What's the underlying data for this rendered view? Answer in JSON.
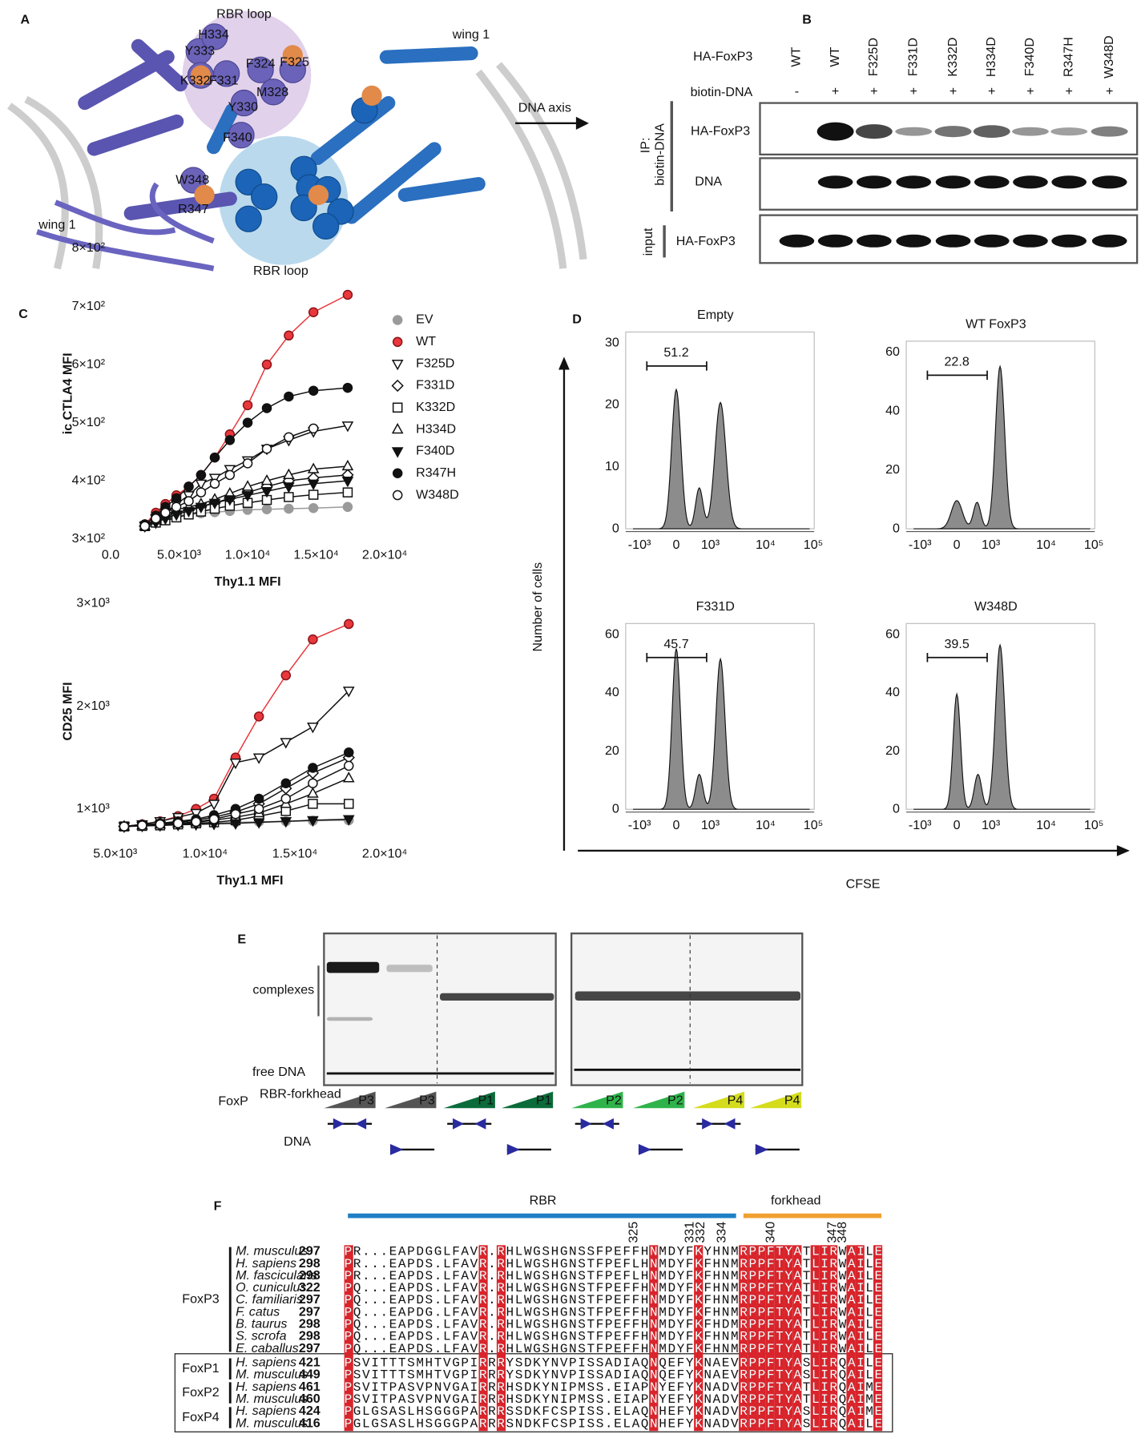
{
  "panel_labels": [
    "A",
    "B",
    "C",
    "D",
    "E",
    "F"
  ],
  "panel_a": {
    "rbr_loop_purple": "RBR loop",
    "residues": [
      "H334",
      "Y333",
      "F324",
      "F325",
      "K332",
      "F331",
      "M328",
      "Y330",
      "F340",
      "W348",
      "R347"
    ],
    "wing_left": "wing 1",
    "wing_right": "wing 1",
    "rbr_loop_blue": "RBR loop",
    "dna_axis": "DNA axis"
  },
  "panel_b": {
    "row_labels": [
      "HA-FoxP3",
      "biotin-DNA"
    ],
    "lanes": [
      "WT",
      "WT",
      "F325D",
      "F331D",
      "K332D",
      "H334D",
      "F340D",
      "R347H",
      "W348D"
    ],
    "biotin": [
      "-",
      "+",
      "+",
      "+",
      "+",
      "+",
      "+",
      "+",
      "+"
    ],
    "ip_label": [
      "IP:",
      "biotin-DNA"
    ],
    "blot_labels": [
      "HA-FoxP3",
      "DNA",
      "HA-FoxP3"
    ],
    "input_label": "input"
  },
  "chart_data": [
    {
      "type": "line",
      "y_label": "ic CTLA4 MFI",
      "x_label": "Thy1.1 MFI",
      "x": [
        2500,
        3300,
        4000,
        4800,
        5700,
        6600,
        7600,
        8700,
        10000,
        11400,
        13000,
        14800,
        17300
      ],
      "xlim": [
        0,
        20000
      ],
      "xticks": [
        {
          "value": 0,
          "label": "0.0"
        },
        {
          "value": 5000,
          "label": "5.0×10³"
        },
        {
          "value": 10000,
          "label": "1.0×10⁴"
        },
        {
          "value": 15000,
          "label": "1.5×10⁴"
        },
        {
          "value": 20000,
          "label": "2.0×10⁴"
        }
      ],
      "ylim": [
        300,
        800
      ],
      "yticks": [
        {
          "value": 300,
          "label": "3×10²"
        },
        {
          "value": 400,
          "label": "4×10²"
        },
        {
          "value": 500,
          "label": "5×10²"
        },
        {
          "value": 600,
          "label": "6×10²"
        },
        {
          "value": 700,
          "label": "7×10²"
        },
        {
          "value": 800,
          "label": "8×10²"
        }
      ],
      "legend": "upper right",
      "series": [
        {
          "name": "EV",
          "color": "#9a9a9a",
          "marker": "circle",
          "filled": true,
          "values": [
            325,
            330,
            335,
            340,
            342,
            344,
            346,
            348,
            350,
            351,
            352,
            353,
            355
          ]
        },
        {
          "name": "WT",
          "color": "#e8383d",
          "marker": "circle",
          "filled": true,
          "values": [
            325,
            345,
            360,
            375,
            390,
            410,
            440,
            480,
            530,
            600,
            650,
            690,
            720
          ]
        },
        {
          "name": "F325D",
          "color": "#111111",
          "marker": "triangle-down",
          "filled": false,
          "values": [
            322,
            335,
            345,
            360,
            375,
            395,
            405,
            420,
            435,
            455,
            470,
            485,
            495
          ]
        },
        {
          "name": "F331D",
          "color": "#111111",
          "marker": "diamond",
          "filled": false,
          "values": [
            322,
            332,
            338,
            345,
            350,
            356,
            362,
            370,
            380,
            390,
            400,
            405,
            410
          ]
        },
        {
          "name": "K332D",
          "color": "#111111",
          "marker": "square",
          "filled": false,
          "values": [
            322,
            328,
            332,
            337,
            342,
            347,
            352,
            357,
            362,
            367,
            372,
            376,
            380
          ]
        },
        {
          "name": "H334D",
          "color": "#111111",
          "marker": "triangle-up",
          "filled": false,
          "values": [
            322,
            332,
            340,
            350,
            355,
            360,
            368,
            378,
            390,
            400,
            410,
            420,
            425
          ]
        },
        {
          "name": "F340D",
          "color": "#111111",
          "marker": "triangle-down",
          "filled": true,
          "values": [
            322,
            328,
            335,
            342,
            348,
            355,
            362,
            368,
            375,
            382,
            390,
            395,
            400
          ]
        },
        {
          "name": "R347H",
          "color": "#111111",
          "marker": "circle",
          "filled": true,
          "values": [
            325,
            340,
            355,
            370,
            390,
            410,
            440,
            470,
            500,
            525,
            545,
            555,
            560
          ]
        },
        {
          "name": "W348D",
          "color": "#111111",
          "marker": "circle",
          "filled": false,
          "values": [
            322,
            335,
            345,
            355,
            365,
            380,
            395,
            410,
            430,
            455,
            475,
            490,
            null
          ]
        }
      ]
    },
    {
      "type": "line",
      "y_label": "CD25 MFI",
      "x_label": "Thy1.1 MFI",
      "x": [
        5500,
        6500,
        7500,
        8500,
        9500,
        10500,
        11700,
        13000,
        14500,
        16000,
        18000
      ],
      "xlim": [
        5000,
        20000
      ],
      "xticks": [
        {
          "value": 5000,
          "label": "5.0×10³"
        },
        {
          "value": 10000,
          "label": "1.0×10⁴"
        },
        {
          "value": 15000,
          "label": "1.5×10⁴"
        },
        {
          "value": 20000,
          "label": "2.0×10⁴"
        }
      ],
      "ylim": [
        800,
        3100
      ],
      "yticks": [
        {
          "value": 1000,
          "label": "1×10³"
        },
        {
          "value": 2000,
          "label": "2×10³"
        },
        {
          "value": 3000,
          "label": "3×10³"
        }
      ],
      "series": [
        {
          "color": "#9a9a9a",
          "marker": "circle",
          "filled": true,
          "values": [
            830,
            840,
            850,
            855,
            860,
            865,
            870,
            875,
            880,
            885,
            890
          ]
        },
        {
          "color": "#e8383d",
          "marker": "circle",
          "filled": true,
          "values": [
            830,
            850,
            880,
            930,
            1000,
            1100,
            1500,
            1900,
            2300,
            2650,
            2800
          ]
        },
        {
          "color": "#111111",
          "marker": "triangle-down",
          "filled": false,
          "values": [
            830,
            850,
            880,
            920,
            960,
            1050,
            1450,
            1500,
            1650,
            1800,
            2150
          ]
        },
        {
          "color": "#111111",
          "marker": "diamond",
          "filled": false,
          "values": [
            830,
            840,
            855,
            870,
            890,
            920,
            970,
            1050,
            1200,
            1350,
            1500
          ]
        },
        {
          "color": "#111111",
          "marker": "square",
          "filled": false,
          "values": [
            830,
            835,
            840,
            850,
            860,
            870,
            890,
            930,
            980,
            1050,
            1050
          ]
        },
        {
          "color": "#111111",
          "marker": "triangle-up",
          "filled": false,
          "values": [
            830,
            840,
            850,
            860,
            870,
            890,
            920,
            960,
            1050,
            1150,
            1300
          ]
        },
        {
          "color": "#111111",
          "marker": "triangle-down",
          "filled": true,
          "values": [
            830,
            835,
            840,
            845,
            850,
            855,
            860,
            870,
            880,
            890,
            900
          ]
        },
        {
          "color": "#111111",
          "marker": "circle",
          "filled": true,
          "values": [
            830,
            845,
            860,
            880,
            900,
            940,
            1000,
            1100,
            1250,
            1400,
            1550
          ]
        },
        {
          "color": "#111111",
          "marker": "circle",
          "filled": false,
          "values": [
            830,
            840,
            850,
            860,
            875,
            900,
            950,
            1000,
            1100,
            1250,
            1420
          ]
        }
      ]
    }
  ],
  "panel_d": {
    "y_axis_label": "Number of cells",
    "x_axis_label": "CFSE",
    "xtick_labels": [
      "-10³",
      "0",
      "10³",
      "10⁴",
      "10⁵"
    ],
    "plots": [
      {
        "title": "Empty",
        "gate": 51.2,
        "yticks": [
          0,
          10,
          20,
          30
        ]
      },
      {
        "title": "WT FoxP3",
        "gate": 22.8,
        "yticks": [
          0,
          20,
          40,
          60
        ]
      },
      {
        "title": "F331D",
        "gate": 45.7,
        "yticks": [
          0,
          20,
          40,
          60
        ]
      },
      {
        "title": "W348D",
        "gate": 39.5,
        "yticks": [
          0,
          20,
          40,
          60
        ]
      }
    ]
  },
  "panel_e": {
    "complexes": "complexes",
    "free_dna": "free DNA",
    "foxp": "FoxP",
    "foxp_superscript": "RBR-forkhead",
    "lanes": [
      "P3",
      "P3",
      "P1",
      "P1",
      "P2",
      "P2",
      "P4",
      "P4"
    ],
    "lane_colors": [
      "#555555",
      "#555555",
      "#0b6b3a",
      "#0b6b3a",
      "#2db34a",
      "#2db34a",
      "#d4dc1c",
      "#d4dc1c"
    ],
    "dna": "DNA"
  },
  "panel_f": {
    "regions": [
      "RBR",
      "forkhead"
    ],
    "residue_numbers": [
      325,
      331,
      332,
      334,
      340,
      347,
      348
    ],
    "groups": [
      {
        "name": "FoxP3",
        "rows": [
          {
            "species": "M. musculus",
            "start": 297,
            "sequence": "PR...EAPDGGLFAVR.RHLWGSHGNSSFPEFFHNMDYFKYHNMRPPFTYATLIRWAILE"
          },
          {
            "species": "H. sapiens",
            "start": 298,
            "sequence": "PR...EAPDS.LFAVR.RHLWGSHGNSTFPEFLHNMDYFKFHNMRPPFTYATLIRWAILE"
          },
          {
            "species": "M. fascicularis",
            "start": 298,
            "sequence": "PR...EAPDS.LFAVR.RHLWGSHGNSTFPEFLHNMDYFKFHNMRPPFTYATLIRWAILE"
          },
          {
            "species": "O. cuniculus",
            "start": 322,
            "sequence": "PQ...EAPDS.LFAVR.RHLWGSHGNSTFPEFFHNMDYFKFHNMRPPFTYATLIRWAILE"
          },
          {
            "species": "C. familiaris",
            "start": 297,
            "sequence": "PQ...EAPDS.LFAVR.RHLWGSHGNSTFPEFFHNMDYFKFHNMRPPFTYATLIRWAILE"
          },
          {
            "species": "F. catus",
            "start": 297,
            "sequence": "PQ...EAPDG.LFAVR.RHLWGSHGNSTFPEFFHNMDYFKFHNMRPPFTYATLIRWAILE"
          },
          {
            "species": "B. taurus",
            "start": 298,
            "sequence": "PQ...EAPDS.LFAVR.RHLWGSHGNSTFPEFFHNMDYFKFHDMRPPFTYATLIRWAILE"
          },
          {
            "species": "S. scrofa",
            "start": 298,
            "sequence": "PQ...EAPDS.LFAVR.RHLWGSHGNSTFPEFFHNMDYFKFHNMRPPFTYATLIRWAILE"
          },
          {
            "species": "E. caballus",
            "start": 297,
            "sequence": "PQ...EAPDS.LFAVR.RHLWGSHGNSTFPEFFHNMDYFKFHNMRPPFTYATLIRWAILE"
          }
        ]
      },
      {
        "name": "FoxP1",
        "rows": [
          {
            "species": "H. sapiens",
            "start": 421,
            "sequence": "PSVITTTSMHTVGPIRRRYSDKYNVPISSADIAQNQEFYKNAEVRPPFTYASLIRQAILE"
          },
          {
            "species": "M. musculus",
            "start": 449,
            "sequence": "PSVITTTSMHTVGPIRRRYSDKYNVPISSADIAQNQEFYKNAEVRPPFTYASLIRQAILE"
          }
        ]
      },
      {
        "name": "FoxP2",
        "rows": [
          {
            "species": "H. sapiens",
            "start": 461,
            "sequence": "PSVITPASVPNVGAIRRRHSDKYNIPMSS.EIAPNYEFYKNADVRPPFTYATLIRQAIME"
          },
          {
            "species": "M. musculus",
            "start": 460,
            "sequence": "PSVITPASVPNVGAIRRRHSDKYNIPMSS.EIAPNYEFYKNADVRPPFTYATLIRQAIME"
          }
        ]
      },
      {
        "name": "FoxP4",
        "rows": [
          {
            "species": "H. sapiens",
            "start": 424,
            "sequence": "PGLGSASLHSGGGPARRRSSDKFCSPISS.ELAQNHEFYKNADVRPPFTYASLIRQAIME"
          },
          {
            "species": "M. musculus",
            "start": 416,
            "sequence": "PGLGSASLHSGGGPARRRSNDKFCSPISS.ELAQNHEFYKNADVRPPFTYASLIRQAILE"
          }
        ]
      }
    ]
  }
}
